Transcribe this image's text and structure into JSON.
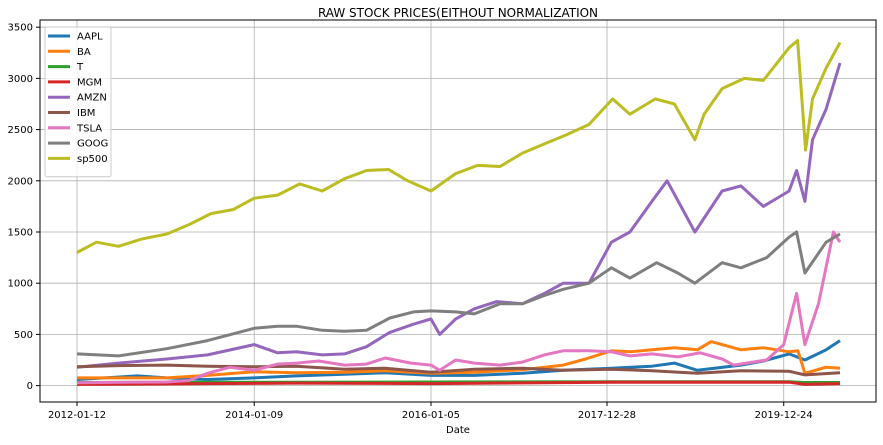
{
  "chart_data": {
    "type": "line",
    "title": "RAW STOCK PRICES(EITHOUT NORMALIZATION",
    "xlabel": "Date",
    "ylabel": "",
    "xlim": [
      "2011-08-13",
      "2021-01-06"
    ],
    "ylim": [
      -160,
      3570
    ],
    "x_ticks": [
      "2012-01-12",
      "2014-01-09",
      "2016-01-05",
      "2017-12-28",
      "2019-12-24"
    ],
    "y_ticks": [
      0,
      500,
      1000,
      1500,
      2000,
      2500,
      3000,
      3500
    ],
    "grid": true,
    "legend": "upper-left",
    "series": [
      {
        "name": "AAPL",
        "color": "#1f77b4",
        "points": [
          [
            "2012-01-12",
            60
          ],
          [
            "2012-09-15",
            95
          ],
          [
            "2013-01-15",
            75
          ],
          [
            "2013-07-01",
            60
          ],
          [
            "2014-01-09",
            75
          ],
          [
            "2014-07-01",
            95
          ],
          [
            "2015-01-15",
            110
          ],
          [
            "2015-07-01",
            125
          ],
          [
            "2016-01-05",
            100
          ],
          [
            "2016-07-01",
            100
          ],
          [
            "2017-01-15",
            120
          ],
          [
            "2017-07-01",
            150
          ],
          [
            "2018-01-15",
            170
          ],
          [
            "2018-07-01",
            190
          ],
          [
            "2018-10-01",
            220
          ],
          [
            "2019-01-03",
            150
          ],
          [
            "2019-07-01",
            200
          ],
          [
            "2019-10-01",
            240
          ],
          [
            "2020-01-15",
            310
          ],
          [
            "2020-03-20",
            250
          ],
          [
            "2020-06-15",
            350
          ],
          [
            "2020-08-11",
            440
          ]
        ]
      },
      {
        "name": "BA",
        "color": "#ff7f0e",
        "points": [
          [
            "2012-01-12",
            75
          ],
          [
            "2013-01-15",
            75
          ],
          [
            "2013-07-01",
            100
          ],
          [
            "2014-01-09",
            135
          ],
          [
            "2014-07-01",
            125
          ],
          [
            "2015-01-15",
            130
          ],
          [
            "2015-07-01",
            145
          ],
          [
            "2016-01-05",
            120
          ],
          [
            "2016-07-01",
            130
          ],
          [
            "2017-01-15",
            155
          ],
          [
            "2017-07-01",
            200
          ],
          [
            "2017-10-01",
            260
          ],
          [
            "2018-01-15",
            340
          ],
          [
            "2018-04-01",
            330
          ],
          [
            "2018-07-01",
            350
          ],
          [
            "2018-10-01",
            370
          ],
          [
            "2019-01-03",
            350
          ],
          [
            "2019-03-01",
            430
          ],
          [
            "2019-07-01",
            350
          ],
          [
            "2019-10-01",
            370
          ],
          [
            "2020-01-15",
            330
          ],
          [
            "2020-02-20",
            340
          ],
          [
            "2020-03-20",
            120
          ],
          [
            "2020-06-15",
            180
          ],
          [
            "2020-08-11",
            170
          ]
        ]
      },
      {
        "name": "T",
        "color": "#2ca02c",
        "points": [
          [
            "2012-01-12",
            30
          ],
          [
            "2016-01-05",
            35
          ],
          [
            "2018-01-15",
            37
          ],
          [
            "2020-01-15",
            38
          ],
          [
            "2020-03-20",
            30
          ],
          [
            "2020-08-11",
            30
          ]
        ]
      },
      {
        "name": "MGM",
        "color": "#d62728",
        "points": [
          [
            "2012-01-12",
            12
          ],
          [
            "2013-07-01",
            20
          ],
          [
            "2014-07-01",
            25
          ],
          [
            "2016-01-05",
            20
          ],
          [
            "2018-01-15",
            33
          ],
          [
            "2020-01-15",
            33
          ],
          [
            "2020-03-20",
            12
          ],
          [
            "2020-08-11",
            20
          ]
        ]
      },
      {
        "name": "AMZN",
        "color": "#9467bd",
        "points": [
          [
            "2012-01-12",
            180
          ],
          [
            "2012-07-01",
            220
          ],
          [
            "2013-01-15",
            260
          ],
          [
            "2013-07-01",
            300
          ],
          [
            "2014-01-09",
            400
          ],
          [
            "2014-04-15",
            320
          ],
          [
            "2014-07-01",
            330
          ],
          [
            "2014-10-15",
            300
          ],
          [
            "2015-01-15",
            310
          ],
          [
            "2015-04-15",
            380
          ],
          [
            "2015-07-20",
            520
          ],
          [
            "2015-10-25",
            600
          ],
          [
            "2016-01-05",
            650
          ],
          [
            "2016-02-10",
            500
          ],
          [
            "2016-04-15",
            650
          ],
          [
            "2016-07-01",
            750
          ],
          [
            "2016-10-01",
            820
          ],
          [
            "2017-01-15",
            800
          ],
          [
            "2017-04-15",
            900
          ],
          [
            "2017-07-01",
            1000
          ],
          [
            "2017-10-15",
            1000
          ],
          [
            "2018-01-15",
            1400
          ],
          [
            "2018-04-01",
            1500
          ],
          [
            "2018-07-01",
            1800
          ],
          [
            "2018-09-01",
            2000
          ],
          [
            "2018-12-24",
            1500
          ],
          [
            "2019-04-15",
            1900
          ],
          [
            "2019-07-01",
            1950
          ],
          [
            "2019-10-01",
            1750
          ],
          [
            "2020-01-15",
            1900
          ],
          [
            "2020-02-15",
            2100
          ],
          [
            "2020-03-20",
            1800
          ],
          [
            "2020-04-20",
            2400
          ],
          [
            "2020-06-15",
            2700
          ],
          [
            "2020-08-11",
            3150
          ]
        ]
      },
      {
        "name": "IBM",
        "color": "#8c564b",
        "points": [
          [
            "2012-01-12",
            185
          ],
          [
            "2012-07-01",
            195
          ],
          [
            "2013-01-15",
            200
          ],
          [
            "2013-07-01",
            190
          ],
          [
            "2014-01-09",
            185
          ],
          [
            "2014-07-01",
            190
          ],
          [
            "2015-01-15",
            160
          ],
          [
            "2015-07-01",
            170
          ],
          [
            "2016-01-05",
            130
          ],
          [
            "2016-07-01",
            160
          ],
          [
            "2017-01-15",
            170
          ],
          [
            "2017-07-01",
            150
          ],
          [
            "2018-01-15",
            160
          ],
          [
            "2018-07-01",
            145
          ],
          [
            "2019-01-03",
            120
          ],
          [
            "2019-07-01",
            145
          ],
          [
            "2020-01-15",
            140
          ],
          [
            "2020-03-20",
            105
          ],
          [
            "2020-08-11",
            125
          ]
        ]
      },
      {
        "name": "TSLA",
        "color": "#e377c2",
        "points": [
          [
            "2012-01-12",
            28
          ],
          [
            "2013-01-15",
            35
          ],
          [
            "2013-04-15",
            50
          ],
          [
            "2013-07-01",
            120
          ],
          [
            "2013-10-01",
            180
          ],
          [
            "2014-01-09",
            150
          ],
          [
            "2014-04-15",
            210
          ],
          [
            "2014-07-01",
            220
          ],
          [
            "2014-10-01",
            240
          ],
          [
            "2015-01-15",
            200
          ],
          [
            "2015-04-15",
            210
          ],
          [
            "2015-07-01",
            270
          ],
          [
            "2015-10-15",
            220
          ],
          [
            "2016-01-05",
            200
          ],
          [
            "2016-02-10",
            150
          ],
          [
            "2016-04-15",
            250
          ],
          [
            "2016-07-01",
            220
          ],
          [
            "2016-10-15",
            200
          ],
          [
            "2017-01-15",
            230
          ],
          [
            "2017-04-15",
            300
          ],
          [
            "2017-07-01",
            340
          ],
          [
            "2017-10-15",
            340
          ],
          [
            "2018-01-15",
            330
          ],
          [
            "2018-04-01",
            290
          ],
          [
            "2018-07-01",
            310
          ],
          [
            "2018-10-15",
            280
          ],
          [
            "2019-01-15",
            320
          ],
          [
            "2019-04-15",
            260
          ],
          [
            "2019-06-01",
            200
          ],
          [
            "2019-10-15",
            250
          ],
          [
            "2019-12-24",
            400
          ],
          [
            "2020-02-15",
            900
          ],
          [
            "2020-03-20",
            400
          ],
          [
            "2020-05-15",
            800
          ],
          [
            "2020-07-15",
            1500
          ],
          [
            "2020-08-11",
            1400
          ]
        ]
      },
      {
        "name": "GOOG",
        "color": "#7f7f7f",
        "points": [
          [
            "2012-01-12",
            310
          ],
          [
            "2012-07-01",
            290
          ],
          [
            "2013-01-15",
            360
          ],
          [
            "2013-07-01",
            440
          ],
          [
            "2014-01-09",
            560
          ],
          [
            "2014-04-15",
            580
          ],
          [
            "2014-07-01",
            580
          ],
          [
            "2014-10-15",
            540
          ],
          [
            "2015-01-15",
            530
          ],
          [
            "2015-04-15",
            540
          ],
          [
            "2015-07-20",
            660
          ],
          [
            "2015-10-25",
            720
          ],
          [
            "2016-01-05",
            730
          ],
          [
            "2016-04-15",
            720
          ],
          [
            "2016-07-01",
            700
          ],
          [
            "2016-10-15",
            800
          ],
          [
            "2017-01-15",
            800
          ],
          [
            "2017-04-15",
            880
          ],
          [
            "2017-07-01",
            940
          ],
          [
            "2017-10-15",
            1000
          ],
          [
            "2018-01-15",
            1150
          ],
          [
            "2018-04-01",
            1050
          ],
          [
            "2018-07-20",
            1200
          ],
          [
            "2018-10-15",
            1100
          ],
          [
            "2018-12-24",
            1000
          ],
          [
            "2019-04-15",
            1200
          ],
          [
            "2019-07-01",
            1150
          ],
          [
            "2019-10-15",
            1250
          ],
          [
            "2020-01-15",
            1450
          ],
          [
            "2020-02-15",
            1500
          ],
          [
            "2020-03-20",
            1100
          ],
          [
            "2020-06-15",
            1400
          ],
          [
            "2020-08-11",
            1480
          ]
        ]
      },
      {
        "name": "sp500",
        "color": "#bcbd22",
        "points": [
          [
            "2012-01-12",
            1300
          ],
          [
            "2012-04-01",
            1400
          ],
          [
            "2012-07-01",
            1360
          ],
          [
            "2012-10-01",
            1430
          ],
          [
            "2013-01-15",
            1480
          ],
          [
            "2013-04-15",
            1570
          ],
          [
            "2013-07-15",
            1680
          ],
          [
            "2013-10-15",
            1720
          ],
          [
            "2014-01-09",
            1830
          ],
          [
            "2014-04-15",
            1860
          ],
          [
            "2014-07-15",
            1970
          ],
          [
            "2014-10-15",
            1900
          ],
          [
            "2015-01-15",
            2020
          ],
          [
            "2015-04-15",
            2100
          ],
          [
            "2015-07-15",
            2110
          ],
          [
            "2015-10-01",
            2000
          ],
          [
            "2016-01-05",
            1900
          ],
          [
            "2016-04-15",
            2070
          ],
          [
            "2016-07-15",
            2150
          ],
          [
            "2016-10-15",
            2140
          ],
          [
            "2017-01-15",
            2270
          ],
          [
            "2017-04-15",
            2360
          ],
          [
            "2017-07-15",
            2450
          ],
          [
            "2017-10-15",
            2550
          ],
          [
            "2018-01-20",
            2800
          ],
          [
            "2018-04-01",
            2650
          ],
          [
            "2018-07-15",
            2800
          ],
          [
            "2018-10-01",
            2750
          ],
          [
            "2018-12-24",
            2400
          ],
          [
            "2019-01-31",
            2650
          ],
          [
            "2019-04-15",
            2900
          ],
          [
            "2019-07-15",
            3000
          ],
          [
            "2019-10-01",
            2980
          ],
          [
            "2020-01-15",
            3300
          ],
          [
            "2020-02-19",
            3370
          ],
          [
            "2020-03-23",
            2300
          ],
          [
            "2020-04-20",
            2800
          ],
          [
            "2020-06-15",
            3100
          ],
          [
            "2020-08-11",
            3350
          ]
        ]
      }
    ]
  }
}
